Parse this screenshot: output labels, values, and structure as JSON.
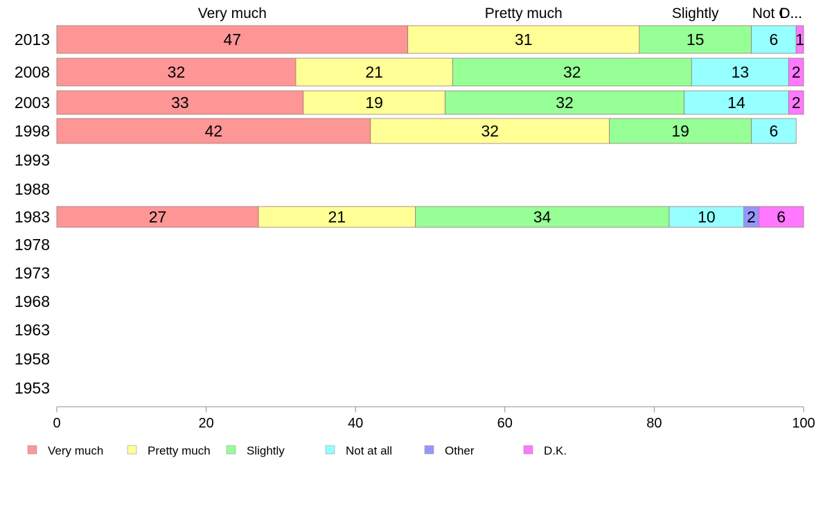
{
  "chart_data": {
    "type": "bar",
    "orientation": "horizontal",
    "stacked": true,
    "categories": [
      "2013",
      "2008",
      "2003",
      "1998",
      "1993",
      "1988",
      "1983",
      "1978",
      "1973",
      "1968",
      "1963",
      "1958",
      "1953"
    ],
    "series": [
      {
        "name": "Very much",
        "color": "#ff9696",
        "values": [
          47,
          32,
          33,
          42,
          null,
          null,
          27,
          null,
          null,
          null,
          null,
          null,
          null
        ]
      },
      {
        "name": "Pretty much",
        "color": "#ffff96",
        "values": [
          31,
          21,
          19,
          32,
          null,
          null,
          21,
          null,
          null,
          null,
          null,
          null,
          null
        ]
      },
      {
        "name": "Slightly",
        "color": "#96ff96",
        "values": [
          15,
          32,
          32,
          19,
          null,
          null,
          34,
          null,
          null,
          null,
          null,
          null,
          null
        ]
      },
      {
        "name": "Not at all",
        "color": "#96ffff",
        "values": [
          6,
          13,
          14,
          6,
          null,
          null,
          10,
          null,
          null,
          null,
          null,
          null,
          null
        ]
      },
      {
        "name": "Other",
        "color": "#9696ff",
        "values": [
          0,
          0,
          0,
          0,
          null,
          null,
          2,
          null,
          null,
          null,
          null,
          null,
          null
        ]
      },
      {
        "name": "D.K.",
        "color": "#ff78ff",
        "values": [
          1,
          2,
          2,
          0,
          null,
          null,
          6,
          null,
          null,
          null,
          null,
          null,
          null
        ]
      }
    ],
    "top_labels": [
      "Very much",
      "Pretty much",
      "Slightly",
      "Not O...",
      "D..."
    ],
    "xlim": [
      0,
      100
    ],
    "xticks": [
      "0",
      "20",
      "40",
      "60",
      "80",
      "100"
    ],
    "grid": false,
    "legend_position": "bottom-left"
  }
}
